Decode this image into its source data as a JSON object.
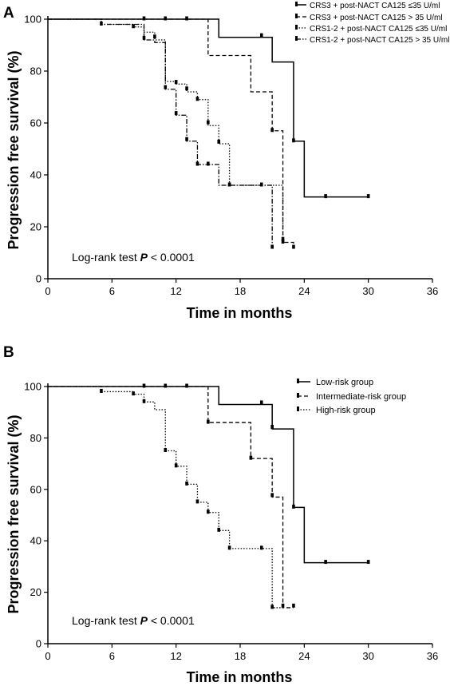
{
  "chart_data": [
    {
      "panel_label": "A",
      "type": "line",
      "step": true,
      "xlabel": "Time in months",
      "ylabel": "Progression free survival (%)",
      "xlim": [
        0,
        36
      ],
      "ylim": [
        0,
        100
      ],
      "xticks": [
        "0",
        "6",
        "12",
        "18",
        "24",
        "30",
        "36"
      ],
      "yticks": [
        "0",
        "20",
        "40",
        "60",
        "80",
        "100"
      ],
      "annotation": {
        "text": "Log-rank test ",
        "p": "P",
        "rest": " < 0.0001"
      },
      "legend_position": "top-right",
      "series": [
        {
          "name": "CRS3 + post-NACT CA125 ≤35 U/ml",
          "style": "solid",
          "steps": [
            [
              0,
              100
            ],
            [
              16,
              93
            ],
            [
              21,
              83.5
            ],
            [
              23,
              53
            ],
            [
              24,
              31.5
            ],
            [
              30,
              31.5
            ]
          ],
          "censors": [
            [
              9,
              100
            ],
            [
              11,
              100
            ],
            [
              13,
              100
            ],
            [
              20,
              93.5
            ],
            [
              23,
              53
            ],
            [
              26,
              31.5
            ],
            [
              30,
              31.5
            ]
          ]
        },
        {
          "name": "CRS3 + post-NACT CA125 > 35 U/ml",
          "style": "dashed",
          "steps": [
            [
              0,
              100
            ],
            [
              15,
              86
            ],
            [
              19,
              72
            ],
            [
              21,
              57
            ],
            [
              22,
              14
            ],
            [
              23,
              12
            ],
            [
              23,
              12
            ]
          ],
          "censors": [
            [
              21,
              57
            ],
            [
              22,
              14
            ],
            [
              23,
              12
            ]
          ]
        },
        {
          "name": "CRS1-2 + post-NACT CA125 ≤35 U/ml",
          "style": "dotted",
          "steps": [
            [
              0,
              100
            ],
            [
              5,
              98
            ],
            [
              8,
              97
            ],
            [
              9,
              95
            ],
            [
              10,
              92
            ],
            [
              11,
              76
            ],
            [
              12,
              75
            ],
            [
              13,
              72
            ],
            [
              14,
              69
            ],
            [
              15,
              59
            ],
            [
              16,
              52
            ],
            [
              17,
              36
            ],
            [
              21,
              36
            ],
            [
              22,
              15
            ]
          ],
          "censors": [
            [
              8,
              97
            ],
            [
              10,
              93
            ],
            [
              12,
              75.5
            ],
            [
              13,
              73
            ],
            [
              14,
              69
            ],
            [
              15,
              60
            ],
            [
              16,
              52.5
            ],
            [
              22,
              15
            ]
          ]
        },
        {
          "name": "CRS1-2 + post-NACT CA125 > 35 U/ml",
          "style": "dashdot",
          "steps": [
            [
              0,
              100
            ],
            [
              5,
              98
            ],
            [
              9,
              92
            ],
            [
              10,
              91
            ],
            [
              11,
              73
            ],
            [
              12,
              63
            ],
            [
              13,
              53
            ],
            [
              14,
              44
            ],
            [
              16,
              36
            ],
            [
              21,
              12
            ],
            [
              21,
              12
            ]
          ],
          "censors": [
            [
              5,
              98
            ],
            [
              9,
              92.5
            ],
            [
              11,
              73.5
            ],
            [
              12,
              63.5
            ],
            [
              13,
              53.5
            ],
            [
              14,
              44
            ],
            [
              15,
              44
            ],
            [
              17,
              36
            ],
            [
              20,
              36
            ],
            [
              21,
              12
            ]
          ]
        }
      ]
    },
    {
      "panel_label": "B",
      "type": "line",
      "step": true,
      "xlabel": "Time in months",
      "ylabel": "Progression free survival (%)",
      "xlim": [
        0,
        36
      ],
      "ylim": [
        0,
        100
      ],
      "xticks": [
        "0",
        "6",
        "12",
        "18",
        "24",
        "30",
        "36"
      ],
      "yticks": [
        "0",
        "20",
        "40",
        "60",
        "80",
        "100"
      ],
      "annotation": {
        "text": "Log-rank test ",
        "p": "P",
        "rest": " < 0.0001"
      },
      "legend_position": "top-right",
      "series": [
        {
          "name": "Low-risk group",
          "style": "solid",
          "steps": [
            [
              0,
              100
            ],
            [
              16,
              93
            ],
            [
              21,
              83.5
            ],
            [
              23,
              53
            ],
            [
              24,
              31.5
            ],
            [
              30,
              31.5
            ]
          ],
          "censors": [
            [
              9,
              100
            ],
            [
              11,
              100
            ],
            [
              13,
              100
            ],
            [
              20,
              93.5
            ],
            [
              21,
              84
            ],
            [
              23,
              53
            ],
            [
              26,
              31.5
            ],
            [
              30,
              31.5
            ]
          ]
        },
        {
          "name": "Intermediate-risk group",
          "style": "dashed",
          "steps": [
            [
              0,
              100
            ],
            [
              15,
              86
            ],
            [
              19,
              72
            ],
            [
              21,
              57
            ],
            [
              22,
              14
            ],
            [
              23,
              14
            ]
          ],
          "censors": [
            [
              15,
              86
            ],
            [
              19,
              72
            ],
            [
              21,
              57.5
            ],
            [
              22,
              14.5
            ],
            [
              23,
              14.5
            ]
          ]
        },
        {
          "name": "High-risk group",
          "style": "dotted",
          "steps": [
            [
              0,
              100
            ],
            [
              5,
              98
            ],
            [
              8,
              97
            ],
            [
              9,
              94
            ],
            [
              10,
              91
            ],
            [
              11,
              75
            ],
            [
              12,
              69
            ],
            [
              13,
              62
            ],
            [
              14,
              55
            ],
            [
              15,
              51
            ],
            [
              16,
              44
            ],
            [
              17,
              37
            ],
            [
              20,
              37
            ],
            [
              21,
              14
            ],
            [
              22,
              14
            ]
          ],
          "censors": [
            [
              5,
              98
            ],
            [
              8,
              97
            ],
            [
              9,
              94
            ],
            [
              11,
              75
            ],
            [
              12,
              69
            ],
            [
              13,
              62
            ],
            [
              14,
              55
            ],
            [
              15,
              51
            ],
            [
              16,
              44
            ],
            [
              17,
              37
            ],
            [
              20,
              37
            ],
            [
              21,
              14
            ]
          ]
        }
      ]
    }
  ]
}
